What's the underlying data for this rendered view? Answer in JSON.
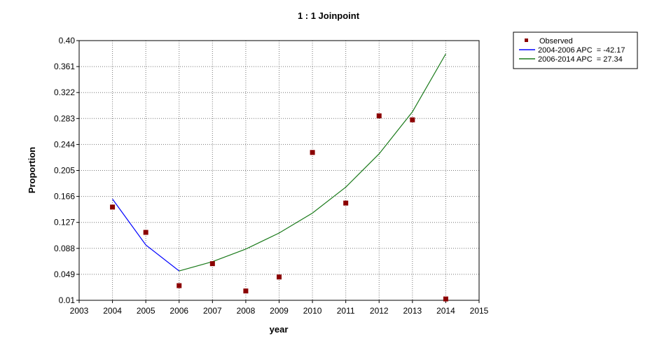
{
  "chart_data": {
    "type": "scatter",
    "title": "1 : 1 Joinpoint",
    "xlabel": "year",
    "ylabel": "Proportion",
    "xlim": [
      2003,
      2015
    ],
    "ylim": [
      0.01,
      0.4
    ],
    "x_ticks": [
      "2003",
      "2004",
      "2005",
      "2006",
      "2007",
      "2008",
      "2009",
      "2010",
      "2011",
      "2012",
      "2013",
      "2014",
      "2015"
    ],
    "y_ticks": [
      "0.01",
      "0.049",
      "0.088",
      "0.127",
      "0.166",
      "0.205",
      "0.244",
      "0.283",
      "0.322",
      "0.361",
      "0.40"
    ],
    "grid": true,
    "legend_position": "top-right outside",
    "observed": {
      "name": "Observed",
      "color": "#8b0000",
      "points": [
        {
          "x": 2004,
          "y": 0.15
        },
        {
          "x": 2005,
          "y": 0.112
        },
        {
          "x": 2006,
          "y": 0.032
        },
        {
          "x": 2007,
          "y": 0.065
        },
        {
          "x": 2008,
          "y": 0.024
        },
        {
          "x": 2009,
          "y": 0.045
        },
        {
          "x": 2010,
          "y": 0.232
        },
        {
          "x": 2011,
          "y": 0.156
        },
        {
          "x": 2012,
          "y": 0.287
        },
        {
          "x": 2013,
          "y": 0.281
        },
        {
          "x": 2014,
          "y": 0.012
        }
      ]
    },
    "series": [
      {
        "name": "2004-2006 APC  = -42.17",
        "color": "#0000ff",
        "points": [
          {
            "x": 2004,
            "y": 0.162
          },
          {
            "x": 2005,
            "y": 0.093
          },
          {
            "x": 2006,
            "y": 0.054
          }
        ]
      },
      {
        "name": "2006-2014 APC  = 27.34",
        "color": "#1a7a1a",
        "points": [
          {
            "x": 2006,
            "y": 0.054
          },
          {
            "x": 2007,
            "y": 0.068
          },
          {
            "x": 2008,
            "y": 0.087
          },
          {
            "x": 2009,
            "y": 0.111
          },
          {
            "x": 2010,
            "y": 0.141
          },
          {
            "x": 2011,
            "y": 0.18
          },
          {
            "x": 2012,
            "y": 0.23
          },
          {
            "x": 2013,
            "y": 0.293
          },
          {
            "x": 2014,
            "y": 0.38
          }
        ]
      }
    ]
  }
}
